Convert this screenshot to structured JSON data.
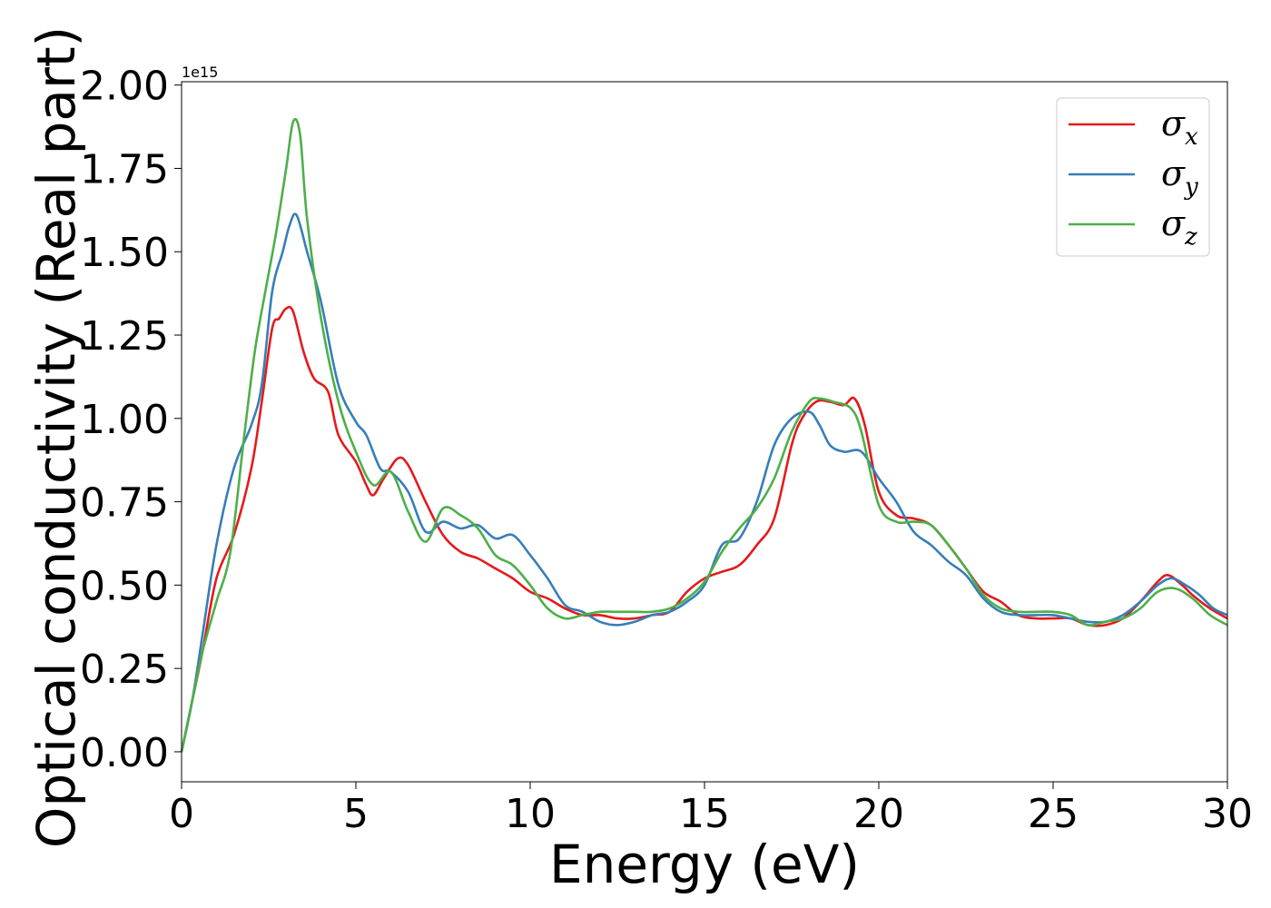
{
  "chart_data": {
    "type": "line",
    "xlabel": "Energy (eV)",
    "ylabel": "Optical conductivity (Real part)",
    "offset_text": "1e15",
    "xlim": [
      0,
      30
    ],
    "ylim": [
      -0.09,
      2.01
    ],
    "xticks": [
      0,
      5,
      10,
      15,
      20,
      25,
      30
    ],
    "yticks": [
      0.0,
      0.25,
      0.5,
      0.75,
      1.0,
      1.25,
      1.5,
      1.75,
      2.0
    ],
    "xtick_labels": [
      "0",
      "5",
      "10",
      "15",
      "20",
      "25",
      "30"
    ],
    "ytick_labels": [
      "0.00",
      "0.25",
      "0.50",
      "0.75",
      "1.00",
      "1.25",
      "1.50",
      "1.75",
      "2.00"
    ],
    "legend_position": "top-right",
    "grid": false,
    "series": [
      {
        "name": "σx",
        "symbol": "σ",
        "sub": "x",
        "color": "#e41a1c",
        "points": [
          [
            0,
            0
          ],
          [
            0.3,
            0.15
          ],
          [
            0.6,
            0.3
          ],
          [
            1.0,
            0.52
          ],
          [
            1.5,
            0.65
          ],
          [
            2.0,
            0.85
          ],
          [
            2.3,
            1.05
          ],
          [
            2.6,
            1.27
          ],
          [
            2.8,
            1.3
          ],
          [
            3.0,
            1.33
          ],
          [
            3.2,
            1.32
          ],
          [
            3.5,
            1.2
          ],
          [
            3.8,
            1.12
          ],
          [
            4.2,
            1.08
          ],
          [
            4.5,
            0.95
          ],
          [
            5.0,
            0.87
          ],
          [
            5.3,
            0.8
          ],
          [
            5.5,
            0.77
          ],
          [
            5.8,
            0.82
          ],
          [
            6.2,
            0.88
          ],
          [
            6.5,
            0.86
          ],
          [
            7.0,
            0.75
          ],
          [
            7.5,
            0.65
          ],
          [
            8.0,
            0.6
          ],
          [
            8.5,
            0.58
          ],
          [
            9.0,
            0.55
          ],
          [
            9.5,
            0.52
          ],
          [
            10.0,
            0.48
          ],
          [
            10.5,
            0.46
          ],
          [
            11.0,
            0.43
          ],
          [
            11.5,
            0.41
          ],
          [
            12.0,
            0.41
          ],
          [
            12.5,
            0.4
          ],
          [
            13.0,
            0.4
          ],
          [
            13.5,
            0.41
          ],
          [
            14.0,
            0.42
          ],
          [
            14.5,
            0.48
          ],
          [
            15.0,
            0.52
          ],
          [
            15.5,
            0.54
          ],
          [
            16.0,
            0.56
          ],
          [
            16.5,
            0.62
          ],
          [
            17.0,
            0.7
          ],
          [
            17.5,
            0.92
          ],
          [
            17.8,
            1.0
          ],
          [
            18.2,
            1.05
          ],
          [
            18.6,
            1.05
          ],
          [
            19.0,
            1.04
          ],
          [
            19.3,
            1.06
          ],
          [
            19.6,
            0.98
          ],
          [
            20.0,
            0.78
          ],
          [
            20.5,
            0.71
          ],
          [
            21.0,
            0.7
          ],
          [
            21.5,
            0.68
          ],
          [
            22.0,
            0.62
          ],
          [
            22.5,
            0.55
          ],
          [
            23.0,
            0.48
          ],
          [
            23.5,
            0.45
          ],
          [
            24.0,
            0.41
          ],
          [
            24.5,
            0.4
          ],
          [
            25.0,
            0.4
          ],
          [
            25.5,
            0.4
          ],
          [
            26.0,
            0.38
          ],
          [
            26.5,
            0.38
          ],
          [
            27.0,
            0.4
          ],
          [
            27.5,
            0.45
          ],
          [
            28.0,
            0.51
          ],
          [
            28.3,
            0.53
          ],
          [
            28.7,
            0.5
          ],
          [
            29.0,
            0.47
          ],
          [
            29.5,
            0.43
          ],
          [
            30.0,
            0.4
          ]
        ]
      },
      {
        "name": "σy",
        "symbol": "σ",
        "sub": "y",
        "color": "#377eb8",
        "points": [
          [
            0,
            0
          ],
          [
            0.3,
            0.15
          ],
          [
            0.6,
            0.35
          ],
          [
            1.0,
            0.62
          ],
          [
            1.5,
            0.85
          ],
          [
            2.0,
            0.98
          ],
          [
            2.3,
            1.1
          ],
          [
            2.6,
            1.38
          ],
          [
            2.9,
            1.5
          ],
          [
            3.1,
            1.58
          ],
          [
            3.3,
            1.61
          ],
          [
            3.6,
            1.5
          ],
          [
            4.0,
            1.35
          ],
          [
            4.5,
            1.1
          ],
          [
            5.0,
            0.99
          ],
          [
            5.3,
            0.95
          ],
          [
            5.7,
            0.85
          ],
          [
            6.0,
            0.84
          ],
          [
            6.5,
            0.78
          ],
          [
            7.0,
            0.66
          ],
          [
            7.5,
            0.69
          ],
          [
            8.0,
            0.67
          ],
          [
            8.5,
            0.68
          ],
          [
            9.0,
            0.64
          ],
          [
            9.5,
            0.65
          ],
          [
            10.0,
            0.59
          ],
          [
            10.5,
            0.52
          ],
          [
            11.0,
            0.44
          ],
          [
            11.5,
            0.42
          ],
          [
            12.0,
            0.39
          ],
          [
            12.5,
            0.38
          ],
          [
            13.0,
            0.39
          ],
          [
            13.5,
            0.41
          ],
          [
            14.0,
            0.42
          ],
          [
            14.5,
            0.45
          ],
          [
            15.0,
            0.5
          ],
          [
            15.5,
            0.62
          ],
          [
            16.0,
            0.64
          ],
          [
            16.5,
            0.75
          ],
          [
            17.0,
            0.92
          ],
          [
            17.5,
            1.0
          ],
          [
            18.0,
            1.02
          ],
          [
            18.3,
            0.98
          ],
          [
            18.6,
            0.92
          ],
          [
            19.0,
            0.9
          ],
          [
            19.5,
            0.9
          ],
          [
            20.0,
            0.82
          ],
          [
            20.5,
            0.75
          ],
          [
            21.0,
            0.66
          ],
          [
            21.5,
            0.62
          ],
          [
            22.0,
            0.57
          ],
          [
            22.5,
            0.53
          ],
          [
            23.0,
            0.46
          ],
          [
            23.5,
            0.42
          ],
          [
            24.0,
            0.41
          ],
          [
            24.5,
            0.41
          ],
          [
            25.0,
            0.41
          ],
          [
            25.5,
            0.4
          ],
          [
            26.0,
            0.39
          ],
          [
            26.5,
            0.39
          ],
          [
            27.0,
            0.41
          ],
          [
            27.5,
            0.45
          ],
          [
            28.0,
            0.5
          ],
          [
            28.4,
            0.52
          ],
          [
            28.8,
            0.5
          ],
          [
            29.2,
            0.47
          ],
          [
            29.6,
            0.43
          ],
          [
            30.0,
            0.41
          ]
        ]
      },
      {
        "name": "σz",
        "symbol": "σ",
        "sub": "z",
        "color": "#4daf4a",
        "points": [
          [
            0,
            0
          ],
          [
            0.3,
            0.15
          ],
          [
            0.6,
            0.3
          ],
          [
            1.0,
            0.45
          ],
          [
            1.4,
            0.6
          ],
          [
            1.8,
            0.95
          ],
          [
            2.1,
            1.2
          ],
          [
            2.4,
            1.38
          ],
          [
            2.7,
            1.55
          ],
          [
            3.0,
            1.75
          ],
          [
            3.2,
            1.89
          ],
          [
            3.4,
            1.85
          ],
          [
            3.6,
            1.6
          ],
          [
            4.0,
            1.3
          ],
          [
            4.5,
            1.05
          ],
          [
            5.0,
            0.9
          ],
          [
            5.5,
            0.8
          ],
          [
            6.0,
            0.84
          ],
          [
            6.5,
            0.72
          ],
          [
            7.0,
            0.63
          ],
          [
            7.5,
            0.73
          ],
          [
            8.0,
            0.71
          ],
          [
            8.5,
            0.67
          ],
          [
            9.0,
            0.59
          ],
          [
            9.5,
            0.56
          ],
          [
            10.0,
            0.5
          ],
          [
            10.5,
            0.43
          ],
          [
            11.0,
            0.4
          ],
          [
            11.5,
            0.41
          ],
          [
            12.0,
            0.42
          ],
          [
            12.5,
            0.42
          ],
          [
            13.0,
            0.42
          ],
          [
            13.5,
            0.42
          ],
          [
            14.0,
            0.43
          ],
          [
            14.5,
            0.46
          ],
          [
            15.0,
            0.51
          ],
          [
            15.5,
            0.6
          ],
          [
            16.0,
            0.67
          ],
          [
            16.5,
            0.73
          ],
          [
            17.0,
            0.82
          ],
          [
            17.5,
            0.96
          ],
          [
            18.0,
            1.05
          ],
          [
            18.3,
            1.06
          ],
          [
            18.7,
            1.05
          ],
          [
            19.2,
            1.03
          ],
          [
            19.5,
            0.96
          ],
          [
            20.0,
            0.74
          ],
          [
            20.5,
            0.69
          ],
          [
            21.0,
            0.69
          ],
          [
            21.5,
            0.68
          ],
          [
            22.0,
            0.62
          ],
          [
            22.5,
            0.55
          ],
          [
            23.0,
            0.47
          ],
          [
            23.5,
            0.43
          ],
          [
            24.0,
            0.42
          ],
          [
            24.5,
            0.42
          ],
          [
            25.0,
            0.42
          ],
          [
            25.5,
            0.41
          ],
          [
            26.0,
            0.38
          ],
          [
            26.5,
            0.39
          ],
          [
            27.0,
            0.4
          ],
          [
            27.5,
            0.43
          ],
          [
            28.0,
            0.48
          ],
          [
            28.5,
            0.49
          ],
          [
            29.0,
            0.46
          ],
          [
            29.5,
            0.41
          ],
          [
            30.0,
            0.38
          ]
        ]
      }
    ]
  }
}
